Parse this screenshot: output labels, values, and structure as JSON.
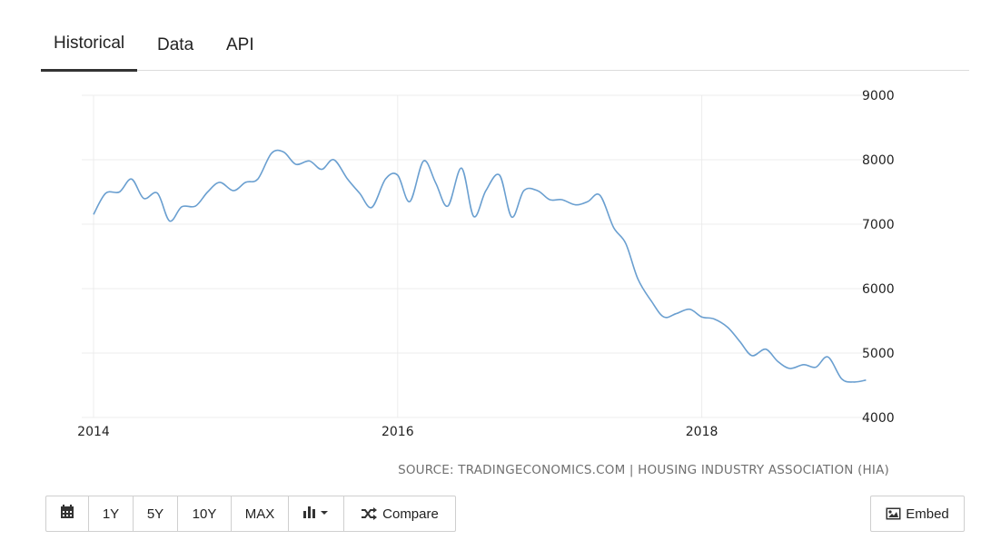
{
  "tabs": [
    {
      "label": "Historical",
      "active": true
    },
    {
      "label": "Data",
      "active": false
    },
    {
      "label": "API",
      "active": false
    }
  ],
  "source_text": "SOURCE: TRADINGECONOMICS.COM | HOUSING INDUSTRY ASSOCIATION (HIA)",
  "toolbar": {
    "calendar_icon": "calendar-icon",
    "range_buttons": [
      "1Y",
      "5Y",
      "10Y",
      "MAX"
    ],
    "chart_type_icon": "bar-chart-dropdown-icon",
    "compare_label": "Compare",
    "compare_icon": "shuffle-icon"
  },
  "embed_label": "Embed",
  "embed_icon": "image-icon",
  "colors": {
    "line": "#6a9fd0",
    "grid": "#ececec",
    "tab_underline": "#333333"
  },
  "chart_data": {
    "type": "line",
    "title": "",
    "xlabel": "",
    "ylabel": "",
    "ylim": [
      4000,
      9000
    ],
    "xlim": [
      2014,
      2019.0
    ],
    "yticks": [
      "9000",
      "8000",
      "7000",
      "6000",
      "5000",
      "4000"
    ],
    "xticks": [
      "2014",
      "2016",
      "2018"
    ],
    "y_axis_position": "right",
    "grid": true,
    "series": [
      {
        "x": [
          2014.0,
          2014.08,
          2014.17,
          2014.25,
          2014.33,
          2014.42,
          2014.5,
          2014.58,
          2014.67,
          2014.75,
          2014.83,
          2014.92,
          2015.0,
          2015.08,
          2015.17,
          2015.25,
          2015.33,
          2015.42,
          2015.5,
          2015.58,
          2015.67,
          2015.75,
          2015.83,
          2015.92,
          2016.0,
          2016.08,
          2016.17,
          2016.25,
          2016.33,
          2016.42,
          2016.5,
          2016.58,
          2016.67,
          2016.75,
          2016.83,
          2016.92,
          2017.0,
          2017.08,
          2017.17,
          2017.25,
          2017.33,
          2017.42,
          2017.5,
          2017.58,
          2017.67,
          2017.75,
          2017.83,
          2017.92,
          2018.0,
          2018.08,
          2018.17,
          2018.25,
          2018.33,
          2018.42,
          2018.5,
          2018.58,
          2018.67,
          2018.75,
          2018.83,
          2018.92,
          2019.0,
          2019.08
        ],
        "values": [
          7150,
          7480,
          7500,
          7700,
          7400,
          7480,
          7050,
          7270,
          7280,
          7500,
          7650,
          7520,
          7650,
          7700,
          8100,
          8120,
          7930,
          7980,
          7850,
          8000,
          7700,
          7480,
          7260,
          7700,
          7760,
          7350,
          7980,
          7640,
          7280,
          7870,
          7120,
          7520,
          7760,
          7110,
          7520,
          7520,
          7380,
          7380,
          7300,
          7350,
          7450,
          6950,
          6700,
          6150,
          5800,
          5560,
          5610,
          5680,
          5560,
          5530,
          5400,
          5180,
          4960,
          5060,
          4870,
          4760,
          4820,
          4780,
          4940,
          4600,
          4550,
          4580
        ]
      }
    ]
  }
}
